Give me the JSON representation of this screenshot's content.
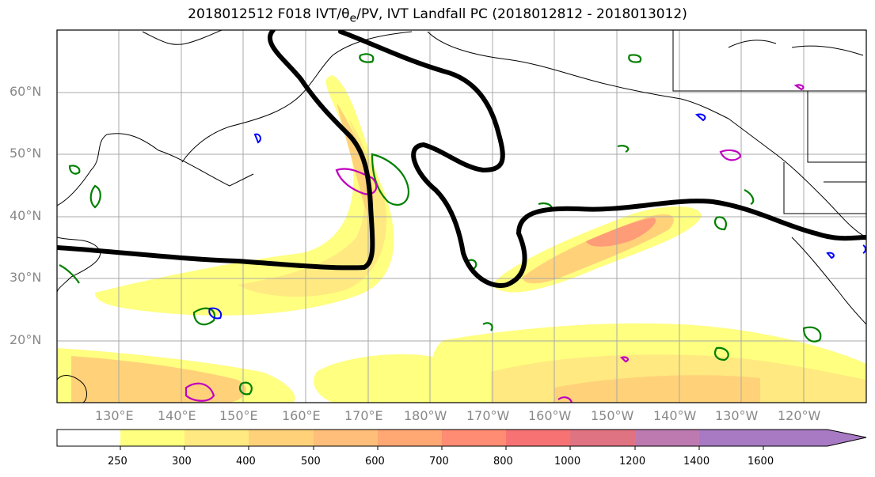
{
  "title": {
    "text": "2018012512 F018 IVT/θ",
    "sub": "e",
    "rest": "/PV, IVT Landfall PC (2018012812 - 2018013012)"
  },
  "lat_labels": [
    "60°N",
    "50°N",
    "40°N",
    "30°N",
    "20°N"
  ],
  "lon_labels": [
    "130°E",
    "140°E",
    "150°E",
    "160°E",
    "170°E",
    "180°W",
    "170°W",
    "160°W",
    "150°W",
    "140°W",
    "130°W",
    "120°W"
  ],
  "colorbar": {
    "ticks": [
      "250",
      "300",
      "400",
      "500",
      "600",
      "700",
      "800",
      "1000",
      "1200",
      "1400",
      "1600"
    ],
    "colors": [
      "#ffffff",
      "#ffff80",
      "#ffe980",
      "#ffd27a",
      "#ffbe7a",
      "#ffa873",
      "#ff8c73",
      "#f77373",
      "#e07382",
      "#bd7ab0",
      "#a87ac4"
    ]
  },
  "colors": {
    "ivt_light": "#ffff80",
    "ivt_mid": "#ffd27a",
    "ivt_high": "#ff9c78",
    "pv_line": "#000000",
    "theta_green": "#008000",
    "theta_blue": "#0000ff",
    "theta_magenta": "#c000c0"
  }
}
